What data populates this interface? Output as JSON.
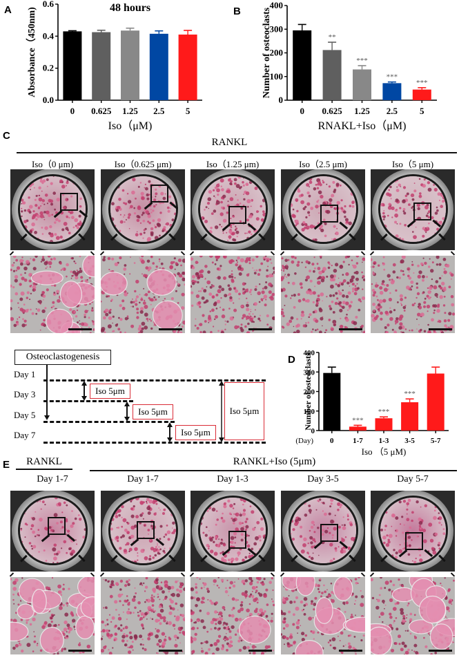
{
  "panels": {
    "A": {
      "letter": "A"
    },
    "B": {
      "letter": "B"
    },
    "C": {
      "letter": "C",
      "group_label": "RANKL",
      "conditions": [
        "Iso（0 μm)",
        "Iso（0.625 μm)",
        "Iso（1.25 μm)",
        "Iso（2.5 μm)",
        "Iso（5 μm)"
      ]
    },
    "D": {
      "letter": "D"
    },
    "E": {
      "letter": "E",
      "group_label_left": "RANKL",
      "group_label_right": "RANKL+Iso (5μm)",
      "conditions": [
        "Day 1-7",
        "Day 1-7",
        "Day 1-3",
        "Day 3-5",
        "Day 5-7"
      ]
    },
    "timeline": {
      "title": "Osteoclastogenesis",
      "days": [
        "Day 1",
        "Day 3",
        "Day 5",
        "Day 7"
      ],
      "treatments": [
        "Iso 5μm",
        "Iso 5μm",
        "Iso 5μm",
        "Iso 5μm"
      ]
    }
  },
  "colors": {
    "black": "#000000",
    "dark_gray": "#5f5f5f",
    "light_gray": "#888888",
    "blue": "#0047a3",
    "red": "#ff1a1a",
    "stain_pink": "#c2406e",
    "box_red": "#d92a35"
  },
  "chart_data": [
    {
      "id": "A",
      "type": "bar",
      "title": "48 hours",
      "xlabel": "Iso（μM)",
      "ylabel": "Absorbance（450nm)",
      "categories": [
        "0",
        "0.625",
        "1.25",
        "2.5",
        "5"
      ],
      "values": [
        0.43,
        0.425,
        0.435,
        0.415,
        0.41
      ],
      "errors": [
        0.004,
        0.012,
        0.015,
        0.018,
        0.026
      ],
      "bar_colors": [
        "#000000",
        "#5f5f5f",
        "#888888",
        "#0047a3",
        "#ff1a1a"
      ],
      "ylim": [
        0,
        0.6
      ],
      "yticks": [
        "0.0",
        "0.2",
        "0.4",
        "0.6"
      ],
      "significance": [
        "",
        "",
        "",
        "",
        ""
      ],
      "grid": false
    },
    {
      "id": "B",
      "type": "bar",
      "title": "",
      "xlabel": "RNAKL+Iso（μM)",
      "ylabel": "Number of osteoclasts",
      "categories": [
        "0",
        "0.625",
        "1.25",
        "2.5",
        "5"
      ],
      "values": [
        295,
        212,
        130,
        72,
        45
      ],
      "errors": [
        25,
        33,
        16,
        5,
        8
      ],
      "bar_colors": [
        "#000000",
        "#5f5f5f",
        "#888888",
        "#0047a3",
        "#ff1a1a"
      ],
      "ylim": [
        0,
        400
      ],
      "yticks": [
        "0",
        "100",
        "200",
        "300",
        "400"
      ],
      "significance": [
        "",
        "**",
        "***",
        "***",
        "***"
      ],
      "grid": false
    },
    {
      "id": "D",
      "type": "bar",
      "title": "",
      "xlabel": "Iso （5 μM)",
      "x_prefix": "(Day)",
      "ylabel": "Number of osteoclasts",
      "categories": [
        "0",
        "1-7",
        "1-3",
        "3-5",
        "5-7"
      ],
      "values": [
        295,
        20,
        63,
        145,
        292
      ],
      "errors": [
        30,
        7,
        7,
        17,
        33
      ],
      "bar_colors": [
        "#000000",
        "#ff1a1a",
        "#ff1a1a",
        "#ff1a1a",
        "#ff1a1a"
      ],
      "ylim": [
        0,
        400
      ],
      "yticks": [
        "0",
        "100",
        "200",
        "300",
        "400"
      ],
      "significance": [
        "",
        "***",
        "***",
        "***",
        ""
      ],
      "grid": false
    }
  ]
}
